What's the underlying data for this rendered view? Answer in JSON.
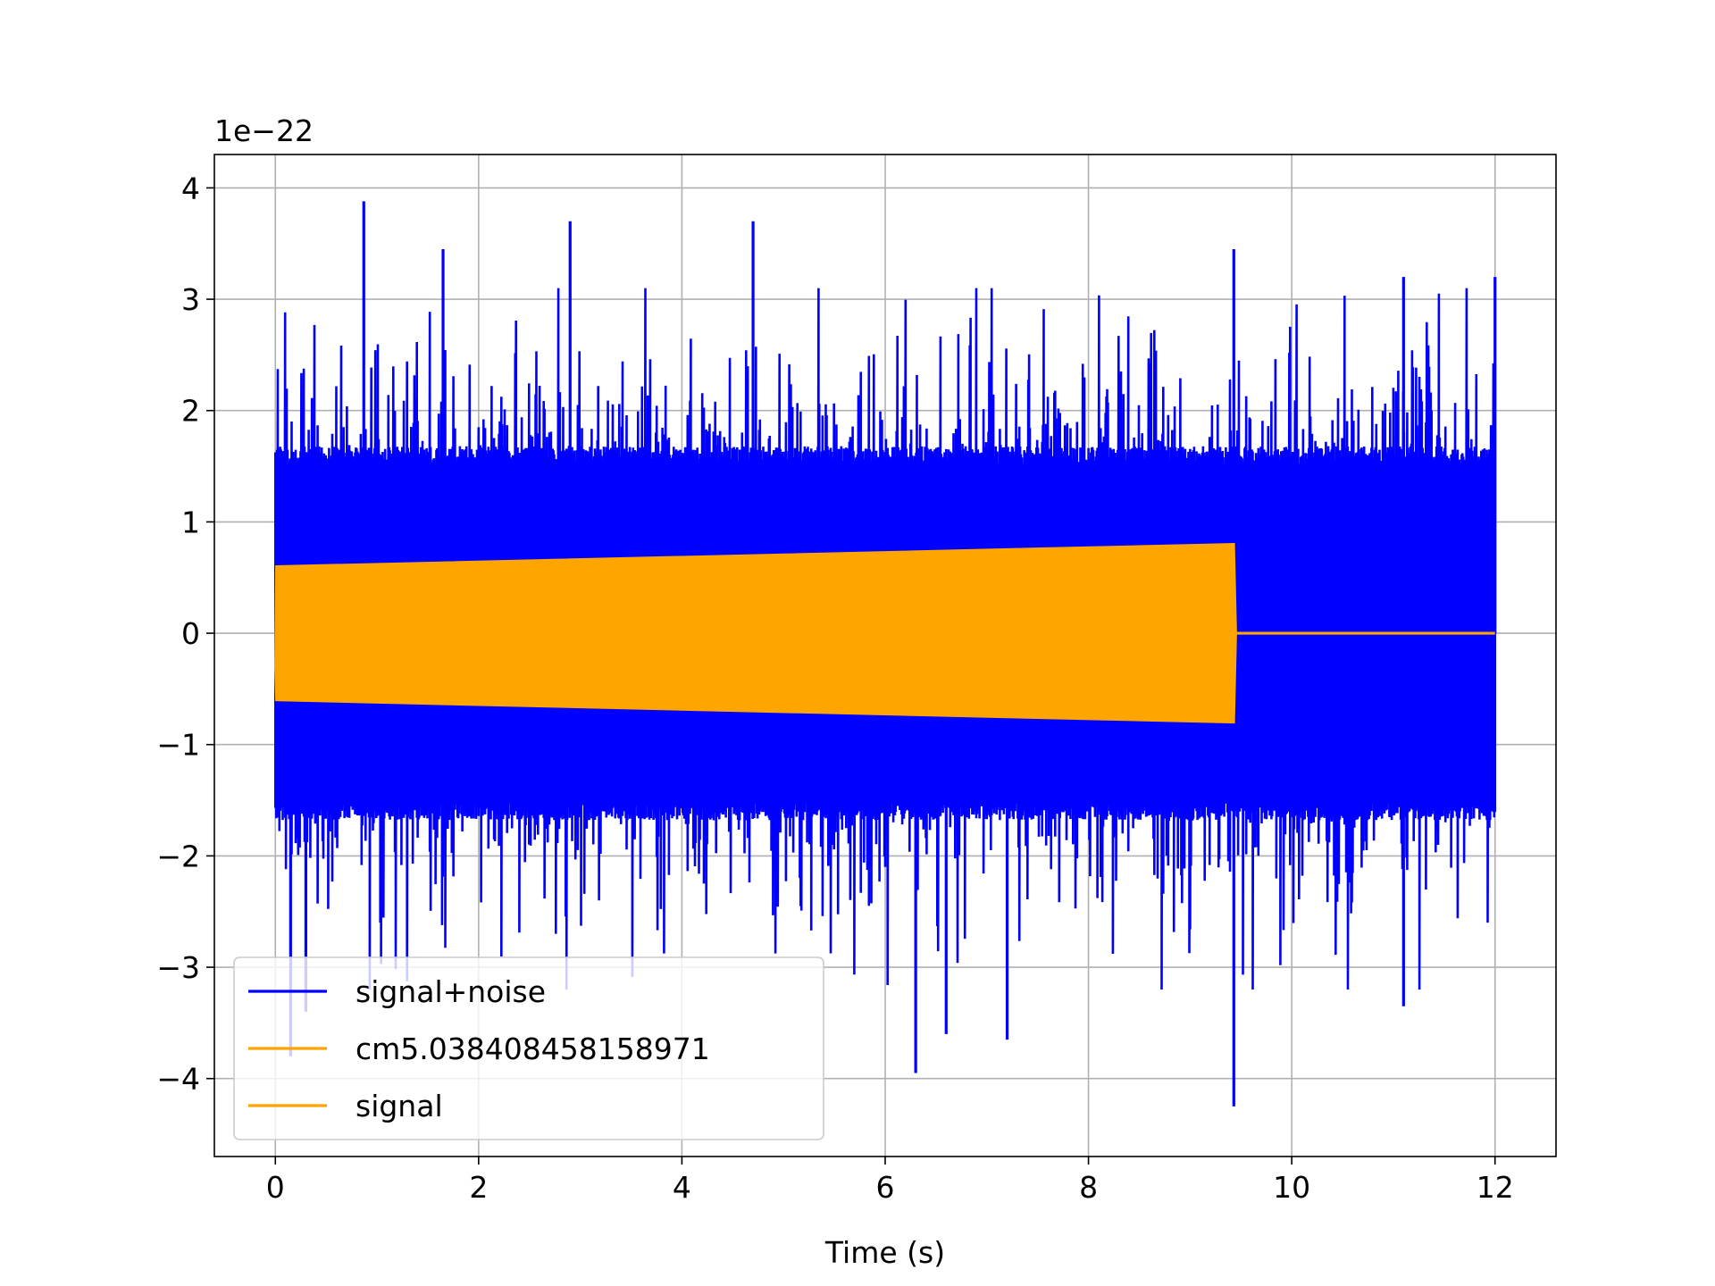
{
  "chart_data": {
    "type": "line",
    "title": "",
    "xlabel": "Time (s)",
    "ylabel": "",
    "y_offset_label": "1e−22",
    "xlim": [
      -0.6,
      12.6
    ],
    "ylim": [
      -4.7,
      4.3
    ],
    "x_ticks": [
      0,
      2,
      4,
      6,
      8,
      10,
      12
    ],
    "x_tick_labels": [
      "0",
      "2",
      "4",
      "6",
      "8",
      "10",
      "12"
    ],
    "y_ticks": [
      4,
      3,
      2,
      1,
      0,
      -1,
      -2,
      -3,
      -4
    ],
    "y_tick_labels": [
      "4",
      "3",
      "2",
      "1",
      "0",
      "−1",
      "−2",
      "−3",
      "−4"
    ],
    "grid": true,
    "legend_position": "lower-left",
    "series": [
      {
        "name": "signal+noise",
        "color": "#0000ff",
        "description": "noise",
        "x_range": [
          0,
          12
        ],
        "typical_envelope": 1.6,
        "extreme_peaks": [
          {
            "x": 0.87,
            "y": 3.88
          },
          {
            "x": 2.9,
            "y": 3.7
          },
          {
            "x": 4.7,
            "y": 3.7
          },
          {
            "x": 1.65,
            "y": 3.45
          },
          {
            "x": 9.43,
            "y": 3.45
          },
          {
            "x": 11.1,
            "y": 3.2
          },
          {
            "x": 12.0,
            "y": 3.2
          },
          {
            "x": 6.3,
            "y": -3.95
          },
          {
            "x": 9.43,
            "y": -4.25
          },
          {
            "x": 0.15,
            "y": -3.8
          },
          {
            "x": 6.6,
            "y": -3.6
          },
          {
            "x": 7.2,
            "y": -3.65
          },
          {
            "x": 0.3,
            "y": -3.4
          },
          {
            "x": 11.1,
            "y": -3.35
          }
        ]
      },
      {
        "name": "cm5.038408458158971",
        "color": "#ffa500",
        "x_range": [
          0,
          9.43
        ],
        "amplitude_start": 0.6,
        "amplitude_end": 0.8,
        "flat_after": [
          9.43,
          12
        ],
        "flat_value": 0
      },
      {
        "name": "signal",
        "color": "#ffa500",
        "x_range": [
          0,
          9.43
        ],
        "amplitude_start": 0.6,
        "amplitude_end": 0.8,
        "flat_after": [
          9.43,
          12
        ],
        "flat_value": 0
      }
    ]
  }
}
